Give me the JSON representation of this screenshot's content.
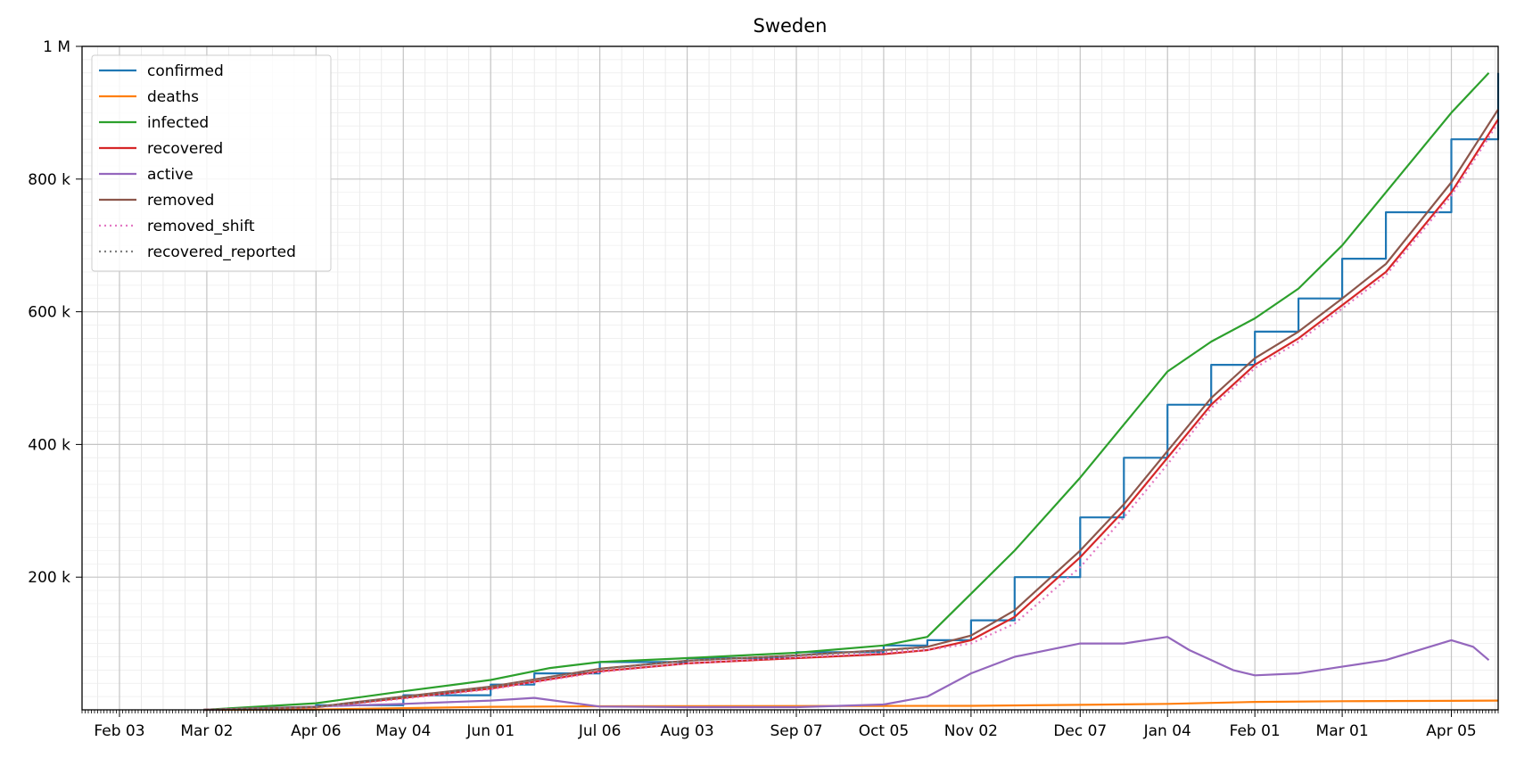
{
  "chart_data": {
    "type": "line",
    "title": "Sweden",
    "xlabel": "",
    "ylabel": "",
    "x_range": [
      "2020-01-22",
      "2021-04-20"
    ],
    "ylim": [
      0,
      1000000
    ],
    "y_tick_values": [
      200000,
      400000,
      600000,
      800000,
      1000000
    ],
    "y_tick_labels": [
      "200 k",
      "400 k",
      "600 k",
      "800 k",
      "1 M"
    ],
    "x_tick_dates": [
      "2020-02-03",
      "2020-03-02",
      "2020-04-06",
      "2020-05-04",
      "2020-06-01",
      "2020-07-06",
      "2020-08-03",
      "2020-09-07",
      "2020-10-05",
      "2020-11-02",
      "2020-12-07",
      "2021-01-04",
      "2021-02-01",
      "2021-03-01",
      "2021-04-05"
    ],
    "x_tick_labels": [
      "Feb 03",
      "Mar 02",
      "Apr 06",
      "May 04",
      "Jun 01",
      "Jul 06",
      "Aug 03",
      "Sep 07",
      "Oct 05",
      "Nov 02",
      "Dec 07",
      "Jan 04",
      "Feb 01",
      "Mar 01",
      "Apr 05"
    ],
    "grid": true,
    "legend_position": "upper-left",
    "series": [
      {
        "name": "confirmed",
        "color": "#1f77b4",
        "style": "solid",
        "step": true,
        "x": [
          "2020-03-01",
          "2020-04-06",
          "2020-05-04",
          "2020-06-01",
          "2020-06-15",
          "2020-07-06",
          "2020-08-03",
          "2020-09-07",
          "2020-10-05",
          "2020-10-19",
          "2020-11-02",
          "2020-11-16",
          "2020-12-07",
          "2020-12-21",
          "2021-01-04",
          "2021-01-18",
          "2021-02-01",
          "2021-02-15",
          "2021-03-01",
          "2021-03-15",
          "2021-04-05",
          "2021-04-20"
        ],
        "values": [
          0,
          7000,
          22000,
          38000,
          55000,
          72000,
          78000,
          87000,
          97000,
          105000,
          135000,
          200000,
          290000,
          380000,
          460000,
          520000,
          570000,
          620000,
          680000,
          750000,
          860000,
          960000
        ]
      },
      {
        "name": "deaths",
        "color": "#ff7f0e",
        "style": "solid",
        "step": false,
        "x": [
          "2020-03-01",
          "2020-04-06",
          "2020-05-04",
          "2020-06-01",
          "2020-07-06",
          "2020-08-03",
          "2020-09-07",
          "2020-10-05",
          "2020-11-02",
          "2020-12-07",
          "2021-01-04",
          "2021-02-01",
          "2021-03-01",
          "2021-04-05",
          "2021-04-20"
        ],
        "values": [
          0,
          500,
          2600,
          4600,
          5400,
          5700,
          5840,
          5900,
          6100,
          7500,
          9000,
          12000,
          13000,
          13600,
          14000
        ]
      },
      {
        "name": "infected",
        "color": "#2ca02c",
        "style": "solid",
        "step": false,
        "x": [
          "2020-03-01",
          "2020-04-06",
          "2020-05-04",
          "2020-06-01",
          "2020-06-20",
          "2020-07-06",
          "2020-08-03",
          "2020-09-07",
          "2020-10-05",
          "2020-10-19",
          "2020-11-02",
          "2020-11-16",
          "2020-12-07",
          "2020-12-21",
          "2021-01-04",
          "2021-01-18",
          "2021-02-01",
          "2021-02-15",
          "2021-03-01",
          "2021-03-15",
          "2021-04-05",
          "2021-04-17"
        ],
        "values": [
          0,
          10000,
          28000,
          45000,
          63000,
          72000,
          78000,
          86000,
          97000,
          110000,
          175000,
          240000,
          350000,
          430000,
          510000,
          555000,
          590000,
          635000,
          700000,
          780000,
          900000,
          960000
        ]
      },
      {
        "name": "recovered",
        "color": "#d62728",
        "style": "solid",
        "step": false,
        "x": [
          "2020-03-01",
          "2020-04-06",
          "2020-05-04",
          "2020-06-01",
          "2020-07-06",
          "2020-08-03",
          "2020-09-07",
          "2020-10-05",
          "2020-10-19",
          "2020-11-02",
          "2020-11-16",
          "2020-12-07",
          "2020-12-21",
          "2021-01-04",
          "2021-01-18",
          "2021-02-01",
          "2021-02-15",
          "2021-03-01",
          "2021-03-15",
          "2021-04-05",
          "2021-04-20"
        ],
        "values": [
          0,
          4000,
          18000,
          32000,
          58000,
          70000,
          78000,
          84000,
          90000,
          105000,
          140000,
          230000,
          300000,
          380000,
          460000,
          520000,
          560000,
          610000,
          660000,
          780000,
          890000
        ]
      },
      {
        "name": "active",
        "color": "#9467bd",
        "style": "solid",
        "step": false,
        "x": [
          "2020-03-01",
          "2020-04-06",
          "2020-05-04",
          "2020-06-01",
          "2020-06-15",
          "2020-07-06",
          "2020-08-03",
          "2020-09-07",
          "2020-10-05",
          "2020-10-19",
          "2020-11-02",
          "2020-11-16",
          "2020-12-07",
          "2020-12-21",
          "2021-01-04",
          "2021-01-11",
          "2021-01-25",
          "2021-02-01",
          "2021-02-15",
          "2021-03-01",
          "2021-03-15",
          "2021-04-05",
          "2021-04-12",
          "2021-04-17"
        ],
        "values": [
          0,
          5000,
          9000,
          14000,
          18000,
          5000,
          4000,
          4000,
          8000,
          20000,
          55000,
          80000,
          100000,
          100000,
          110000,
          90000,
          60000,
          52000,
          55000,
          65000,
          75000,
          105000,
          95000,
          75000
        ]
      },
      {
        "name": "removed",
        "color": "#8c564b",
        "style": "solid",
        "step": false,
        "x": [
          "2020-03-01",
          "2020-04-06",
          "2020-05-04",
          "2020-06-01",
          "2020-07-06",
          "2020-08-03",
          "2020-09-07",
          "2020-10-05",
          "2020-10-19",
          "2020-11-02",
          "2020-11-16",
          "2020-12-07",
          "2020-12-21",
          "2021-01-04",
          "2021-01-18",
          "2021-02-01",
          "2021-02-15",
          "2021-03-01",
          "2021-03-15",
          "2021-04-05",
          "2021-04-20"
        ],
        "values": [
          0,
          4500,
          20000,
          35000,
          62000,
          74000,
          82000,
          90000,
          95000,
          112000,
          150000,
          240000,
          310000,
          390000,
          470000,
          530000,
          570000,
          620000,
          672000,
          795000,
          905000
        ]
      },
      {
        "name": "removed_shift",
        "color": "#e377c2",
        "style": "dotted",
        "step": false,
        "x": [
          "2020-03-01",
          "2020-04-06",
          "2020-05-04",
          "2020-06-01",
          "2020-07-06",
          "2020-08-03",
          "2020-09-07",
          "2020-10-05",
          "2020-10-19",
          "2020-11-02",
          "2020-11-16",
          "2020-12-07",
          "2020-12-21",
          "2021-01-04",
          "2021-01-18",
          "2021-02-01",
          "2021-02-15",
          "2021-03-01",
          "2021-03-15",
          "2021-04-05",
          "2021-04-20"
        ],
        "values": [
          0,
          3500,
          17000,
          31000,
          57000,
          70000,
          79000,
          86000,
          90000,
          100000,
          130000,
          215000,
          290000,
          370000,
          455000,
          515000,
          555000,
          605000,
          655000,
          775000,
          885000
        ]
      },
      {
        "name": "recovered_reported",
        "color": "#7f7f7f",
        "style": "dotted",
        "step": false,
        "x": [
          "2020-03-01",
          "2020-04-06",
          "2020-05-04",
          "2020-06-01",
          "2020-07-06",
          "2020-08-03",
          "2020-09-07",
          "2020-10-05",
          "2020-10-19"
        ],
        "values": [
          0,
          4000,
          19000,
          34000,
          61000,
          74000,
          82000,
          89000,
          94000
        ]
      }
    ]
  }
}
